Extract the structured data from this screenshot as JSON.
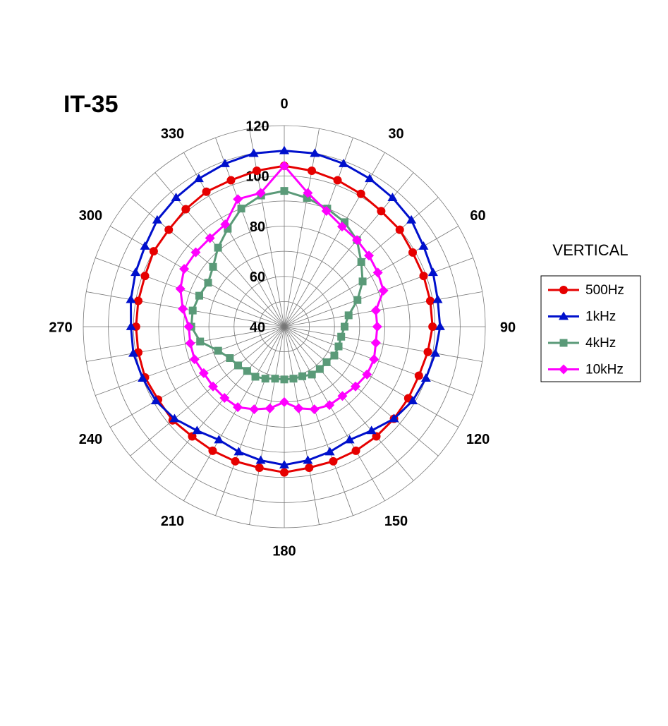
{
  "chart_data": {
    "type": "polar",
    "title": "IT-35",
    "legend_title": "VERTICAL",
    "legend_position": "right",
    "x": [
      0,
      10,
      20,
      30,
      40,
      50,
      60,
      70,
      80,
      90,
      100,
      110,
      120,
      130,
      140,
      150,
      160,
      170,
      180,
      190,
      200,
      210,
      220,
      230,
      240,
      250,
      260,
      270,
      280,
      290,
      300,
      310,
      320,
      330,
      340,
      350
    ],
    "xticks": [
      0,
      30,
      60,
      90,
      120,
      150,
      180,
      210,
      240,
      270,
      300,
      330
    ],
    "ylim": [
      40,
      120
    ],
    "yticks": [
      40,
      60,
      80,
      100,
      120
    ],
    "grid_rings": [
      50,
      60,
      70,
      80,
      90,
      100,
      110,
      120
    ],
    "series": [
      {
        "name": "500Hz",
        "color": "#e60000",
        "marker": "circle",
        "values": [
          104,
          103,
          102,
          101,
          100,
          100,
          99,
          99,
          99,
          99,
          98,
          97,
          97,
          97,
          97,
          97,
          97,
          97,
          98,
          97,
          97,
          97,
          97,
          98,
          98,
          99,
          99,
          99,
          99,
          99,
          100,
          100,
          101,
          102,
          102,
          103
        ]
      },
      {
        "name": "1kHz",
        "color": "#0010cc",
        "marker": "triangle",
        "values": [
          110,
          110,
          109,
          108,
          107,
          106,
          104,
          103,
          102,
          102,
          101,
          100,
          99,
          97,
          94,
          92,
          93,
          94,
          95,
          94,
          93,
          92,
          94,
          97,
          99,
          100,
          101,
          101,
          102,
          103,
          104,
          106,
          107,
          108,
          109,
          110
        ]
      },
      {
        "name": "4kHz",
        "color": "#5a9a78",
        "marker": "square",
        "values": [
          94,
          92,
          90,
          88,
          85,
          80,
          76,
          71,
          66,
          64,
          63,
          63,
          63,
          62,
          62,
          62,
          61,
          61,
          61,
          61,
          62,
          63,
          63,
          64,
          65,
          68,
          74,
          77,
          77,
          76,
          75,
          77,
          81,
          85,
          90,
          93
        ]
      },
      {
        "name": "10kHz",
        "color": "#ff00ff",
        "marker": "diamond",
        "values": [
          104,
          94,
          89,
          86,
          85,
          84,
          83,
          82,
          77,
          77,
          77,
          78,
          78,
          77,
          76,
          76,
          75,
          73,
          70,
          73,
          75,
          77,
          77,
          77,
          77,
          78,
          78,
          78,
          81,
          84,
          86,
          86,
          86,
          87,
          94,
          94
        ]
      }
    ]
  }
}
